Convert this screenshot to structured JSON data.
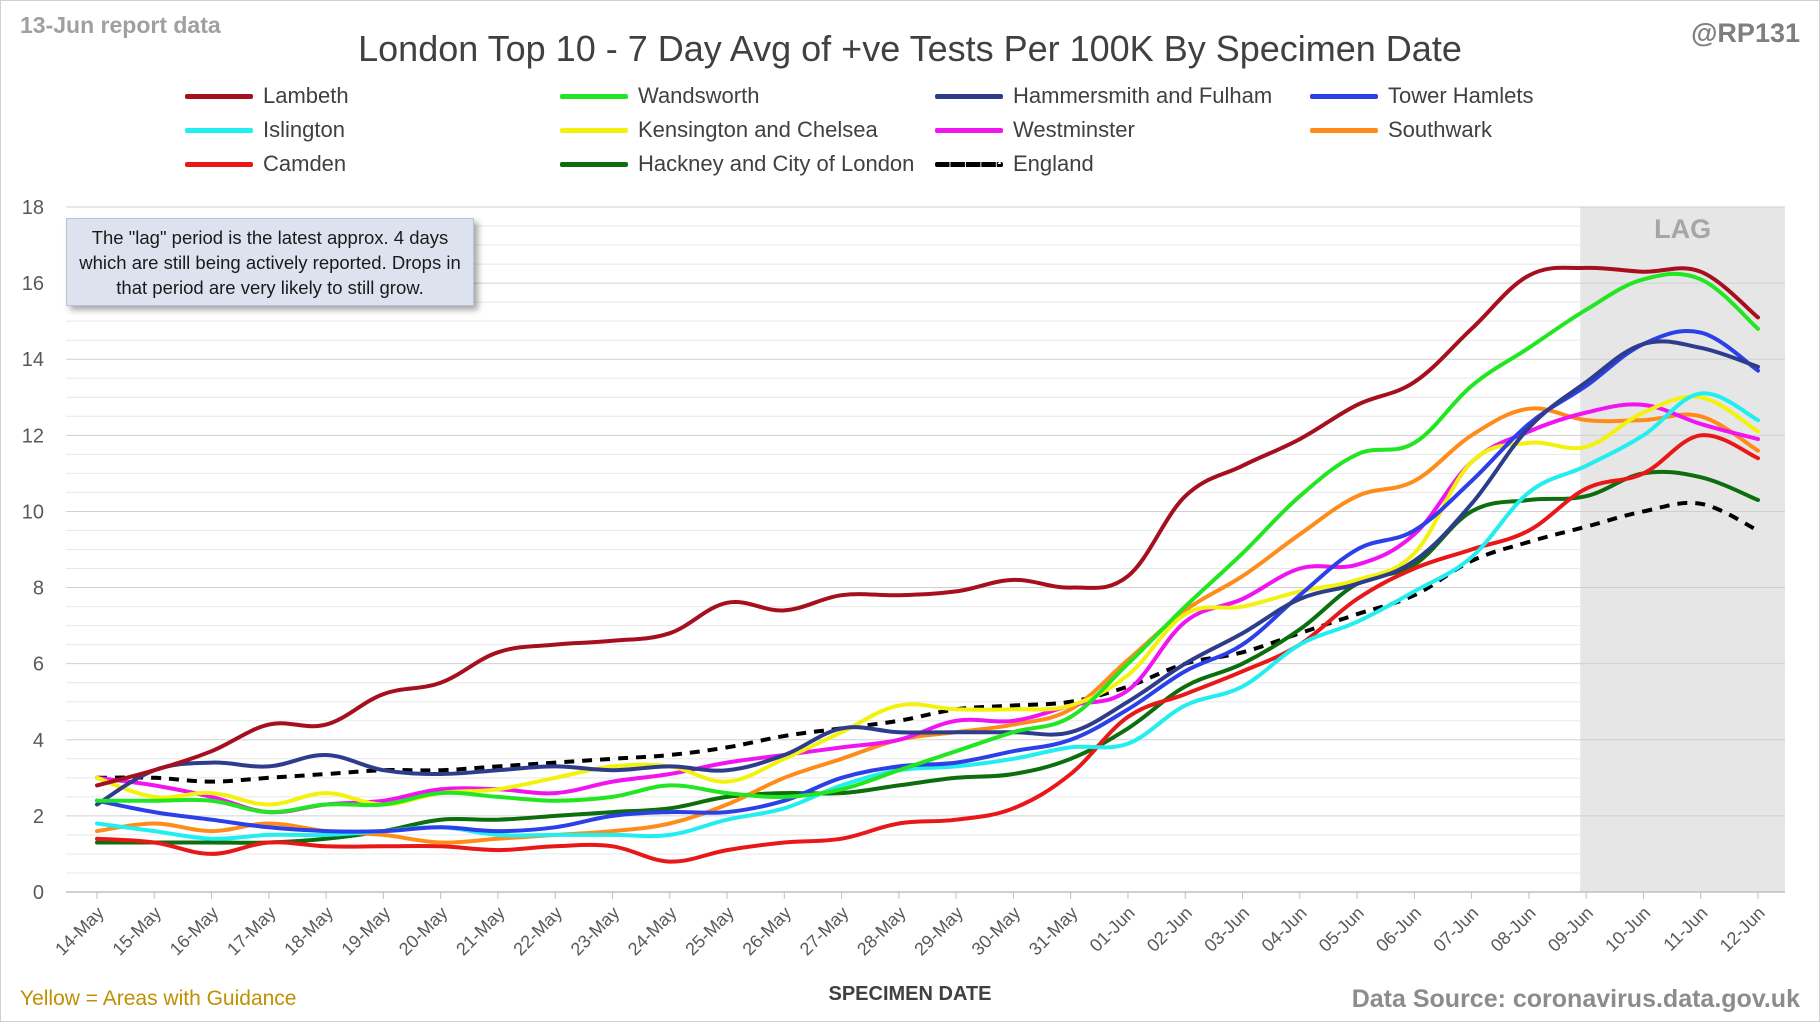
{
  "header": {
    "report_date": "13-Jun report data",
    "handle": "@RP131",
    "title": "London Top 10 - 7 Day Avg of +ve Tests Per 100K By Specimen Date"
  },
  "note": "The \"lag\" period is the latest approx. 4 days which are still being actively reported. Drops in that period are very likely to still grow.",
  "footer": {
    "left": "Yellow = Areas with Guidance",
    "right": "Data Source: coronavirus.data.gov.uk"
  },
  "chart_data": {
    "type": "line",
    "title": "London Top 10 - 7 Day Avg of +ve Tests Per 100K By Specimen Date",
    "xlabel": "SPECIMEN DATE",
    "ylabel": "",
    "ylim": [
      0,
      18
    ],
    "yticks": [
      0,
      2,
      4,
      6,
      8,
      10,
      12,
      14,
      16,
      18
    ],
    "grid": true,
    "legend_position": "top",
    "lag_label": "LAG",
    "lag_start_category": "09-Jun",
    "categories": [
      "14-May",
      "15-May",
      "16-May",
      "17-May",
      "18-May",
      "19-May",
      "20-May",
      "21-May",
      "22-May",
      "23-May",
      "24-May",
      "25-May",
      "26-May",
      "27-May",
      "28-May",
      "29-May",
      "30-May",
      "31-May",
      "01-Jun",
      "02-Jun",
      "03-Jun",
      "04-Jun",
      "05-Jun",
      "06-Jun",
      "07-Jun",
      "08-Jun",
      "09-Jun",
      "10-Jun",
      "11-Jun",
      "12-Jun"
    ],
    "series": [
      {
        "name": "Lambeth",
        "color": "#a50f1e",
        "dashed": false,
        "values": [
          2.8,
          3.2,
          3.7,
          4.4,
          4.4,
          5.2,
          5.5,
          6.3,
          6.5,
          6.6,
          6.8,
          7.6,
          7.4,
          7.8,
          7.8,
          7.9,
          8.2,
          8.0,
          8.3,
          10.4,
          11.2,
          11.9,
          12.8,
          13.4,
          14.8,
          16.2,
          16.4,
          16.3,
          16.3,
          15.1
        ]
      },
      {
        "name": "Wandsworth",
        "color": "#22e622",
        "dashed": false,
        "values": [
          2.4,
          2.4,
          2.4,
          2.1,
          2.3,
          2.3,
          2.6,
          2.5,
          2.4,
          2.5,
          2.8,
          2.6,
          2.5,
          2.7,
          3.2,
          3.7,
          4.2,
          4.6,
          6.0,
          7.5,
          8.9,
          10.4,
          11.5,
          11.8,
          13.3,
          14.3,
          15.3,
          16.1,
          16.1,
          14.8
        ]
      },
      {
        "name": "Hammersmith and Fulham",
        "color": "#2e3c8c",
        "dashed": false,
        "values": [
          2.3,
          3.2,
          3.4,
          3.3,
          3.6,
          3.2,
          3.1,
          3.2,
          3.3,
          3.2,
          3.3,
          3.2,
          3.6,
          4.3,
          4.2,
          4.2,
          4.2,
          4.2,
          5.0,
          6.0,
          6.8,
          7.7,
          8.1,
          8.7,
          10.2,
          12.2,
          13.4,
          14.4,
          14.3,
          13.8
        ]
      },
      {
        "name": "Tower Hamlets",
        "color": "#2b40e8",
        "dashed": false,
        "values": [
          2.4,
          2.1,
          1.9,
          1.7,
          1.6,
          1.6,
          1.7,
          1.6,
          1.7,
          2.0,
          2.1,
          2.1,
          2.4,
          3.0,
          3.3,
          3.4,
          3.7,
          4.0,
          4.8,
          5.8,
          6.5,
          7.8,
          9.0,
          9.5,
          10.8,
          12.3,
          13.3,
          14.4,
          14.7,
          13.7
        ]
      },
      {
        "name": "Islington",
        "color": "#22eef0",
        "dashed": false,
        "values": [
          1.8,
          1.6,
          1.4,
          1.5,
          1.5,
          1.6,
          1.7,
          1.5,
          1.5,
          1.5,
          1.5,
          1.9,
          2.2,
          2.8,
          3.2,
          3.3,
          3.5,
          3.8,
          3.9,
          4.9,
          5.4,
          6.5,
          7.1,
          7.9,
          8.8,
          10.5,
          11.2,
          12.0,
          13.1,
          12.4
        ]
      },
      {
        "name": "Kensington and Chelsea",
        "color": "#f2f20c",
        "dashed": false,
        "values": [
          3.0,
          2.5,
          2.6,
          2.3,
          2.6,
          2.3,
          2.6,
          2.7,
          3.0,
          3.3,
          3.3,
          2.9,
          3.5,
          4.2,
          4.9,
          4.8,
          4.8,
          4.9,
          5.7,
          7.3,
          7.5,
          7.9,
          8.2,
          8.9,
          11.3,
          11.8,
          11.7,
          12.6,
          13.0,
          12.1
        ]
      },
      {
        "name": "Westminster",
        "color": "#f014f0",
        "dashed": false,
        "values": [
          3.0,
          2.8,
          2.5,
          2.1,
          2.3,
          2.4,
          2.7,
          2.7,
          2.6,
          2.9,
          3.1,
          3.4,
          3.6,
          3.8,
          4.0,
          4.5,
          4.5,
          4.9,
          5.3,
          7.1,
          7.7,
          8.5,
          8.6,
          9.4,
          11.3,
          12.1,
          12.6,
          12.8,
          12.3,
          11.9
        ]
      },
      {
        "name": "Southwark",
        "color": "#ff8c1a",
        "dashed": false,
        "values": [
          1.6,
          1.8,
          1.6,
          1.8,
          1.6,
          1.5,
          1.3,
          1.4,
          1.5,
          1.6,
          1.8,
          2.3,
          3.0,
          3.5,
          4.0,
          4.2,
          4.4,
          4.8,
          6.1,
          7.4,
          8.3,
          9.4,
          10.4,
          10.8,
          12.0,
          12.7,
          12.4,
          12.4,
          12.5,
          11.6
        ]
      },
      {
        "name": "Camden",
        "color": "#e81818",
        "dashed": false,
        "values": [
          1.4,
          1.3,
          1.0,
          1.3,
          1.2,
          1.2,
          1.2,
          1.1,
          1.2,
          1.2,
          0.8,
          1.1,
          1.3,
          1.4,
          1.8,
          1.9,
          2.2,
          3.1,
          4.6,
          5.2,
          5.8,
          6.5,
          7.7,
          8.5,
          9.0,
          9.5,
          10.6,
          11.0,
          12.0,
          11.4
        ]
      },
      {
        "name": "Hackney and City of London",
        "color": "#0c6e0c",
        "dashed": false,
        "values": [
          1.3,
          1.3,
          1.3,
          1.3,
          1.4,
          1.6,
          1.9,
          1.9,
          2.0,
          2.1,
          2.2,
          2.5,
          2.6,
          2.6,
          2.8,
          3.0,
          3.1,
          3.5,
          4.3,
          5.4,
          6.0,
          6.9,
          8.1,
          8.6,
          10.0,
          10.3,
          10.4,
          11.0,
          10.9,
          10.3
        ]
      },
      {
        "name": "England",
        "color": "#000000",
        "dashed": true,
        "values": [
          3.0,
          3.0,
          2.9,
          3.0,
          3.1,
          3.2,
          3.2,
          3.3,
          3.4,
          3.5,
          3.6,
          3.8,
          4.1,
          4.3,
          4.5,
          4.8,
          4.9,
          5.0,
          5.4,
          6.0,
          6.3,
          6.8,
          7.3,
          7.8,
          8.7,
          9.2,
          9.6,
          10.0,
          10.2,
          9.5
        ]
      }
    ]
  }
}
